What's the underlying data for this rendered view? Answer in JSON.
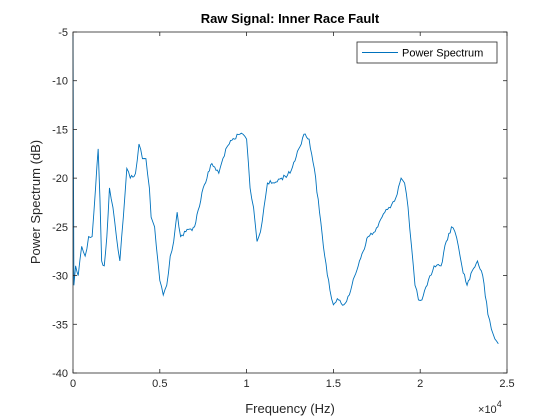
{
  "chart_data": {
    "type": "line",
    "title": "Raw Signal: Inner Race Fault",
    "xlabel": "Frequency (Hz)",
    "ylabel": "Power Spectrum (dB)",
    "x_exponent_label": "10",
    "x_exponent_power": "4",
    "xlim": [
      0,
      25000
    ],
    "ylim": [
      -40,
      -5
    ],
    "x_ticks": [
      0,
      5000,
      10000,
      15000,
      20000,
      25000
    ],
    "x_tick_labels": [
      "0",
      "0.5",
      "1",
      "1.5",
      "2",
      "2.5"
    ],
    "y_ticks": [
      -40,
      -35,
      -30,
      -25,
      -20,
      -15,
      -10,
      -5
    ],
    "y_tick_labels": [
      "-40",
      "-35",
      "-30",
      "-25",
      "-20",
      "-15",
      "-10",
      "-5"
    ],
    "legend_position": "top-right",
    "grid": false,
    "series": [
      {
        "name": "Power Spectrum",
        "color": "#0072BD",
        "x": [
          0,
          50,
          150,
          300,
          500,
          700,
          900,
          1100,
          1300,
          1450,
          1550,
          1650,
          1800,
          1950,
          2100,
          2300,
          2500,
          2700,
          2900,
          3100,
          3300,
          3600,
          3800,
          4000,
          4200,
          4400,
          4500,
          4600,
          4700,
          4800,
          5000,
          5200,
          5400,
          5600,
          5800,
          6000,
          6100,
          6200,
          6500,
          7000,
          7500,
          8000,
          8400,
          8800,
          9000,
          9300,
          9600,
          9800,
          10000,
          10200,
          10400,
          10600,
          10800,
          11000,
          11200,
          11600,
          12000,
          12500,
          13000,
          13300,
          13600,
          13900,
          14200,
          14500,
          14800,
          15000,
          15300,
          15600,
          16000,
          16500,
          17000,
          17400,
          17800,
          18200,
          18600,
          18900,
          19100,
          19300,
          19500,
          19700,
          19900,
          20100,
          20400,
          20800,
          21200,
          21500,
          21800,
          22000,
          22200,
          22400,
          22700,
          23000,
          23300,
          23600,
          23900,
          24100,
          24300,
          24500
        ],
        "y": [
          -5.3,
          -31,
          -29,
          -30,
          -27,
          -28,
          -26,
          -26,
          -21,
          -17,
          -22,
          -28.5,
          -29,
          -26,
          -21,
          -23,
          -26,
          -28.5,
          -24,
          -19,
          -20,
          -19.5,
          -16.5,
          -18,
          -18,
          -21,
          -24,
          -24.5,
          -25,
          -27,
          -30.5,
          -32,
          -31,
          -28,
          -26.5,
          -23.5,
          -25,
          -26,
          -25.5,
          -25,
          -21,
          -18.5,
          -19.5,
          -17,
          -16.5,
          -16,
          -15.5,
          -15.5,
          -16,
          -21,
          -23,
          -26.5,
          -25.5,
          -23,
          -20.5,
          -20.5,
          -20,
          -19.5,
          -17,
          -15.5,
          -16,
          -19,
          -23.5,
          -28,
          -31.5,
          -33,
          -32.5,
          -33,
          -31.5,
          -28.5,
          -26,
          -25.5,
          -24,
          -23,
          -22,
          -20,
          -20.5,
          -23,
          -27,
          -31,
          -32.5,
          -32.5,
          -31,
          -29,
          -29,
          -26.5,
          -25,
          -25.5,
          -27,
          -29,
          -31,
          -29.5,
          -28.5,
          -30,
          -34,
          -35.5,
          -36.5,
          -37
        ]
      }
    ]
  }
}
